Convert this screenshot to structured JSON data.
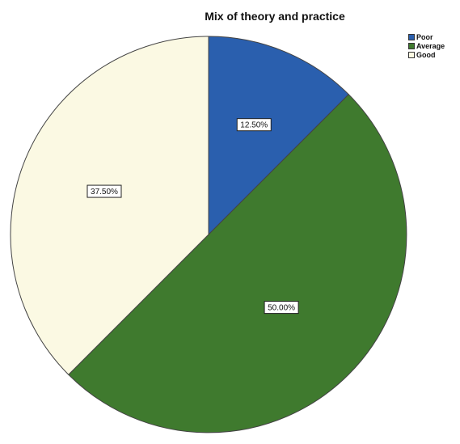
{
  "chart_data": {
    "type": "pie",
    "title": "Mix of theory and practice",
    "categories": [
      "Poor",
      "Average",
      "Good"
    ],
    "values": [
      12.5,
      50.0,
      37.5
    ],
    "data_labels": [
      "12.50%",
      "50.00%",
      "37.50%"
    ],
    "colors": [
      "#2a5fae",
      "#3f7a2e",
      "#fbf9e3"
    ],
    "legend_position": "top-right"
  }
}
